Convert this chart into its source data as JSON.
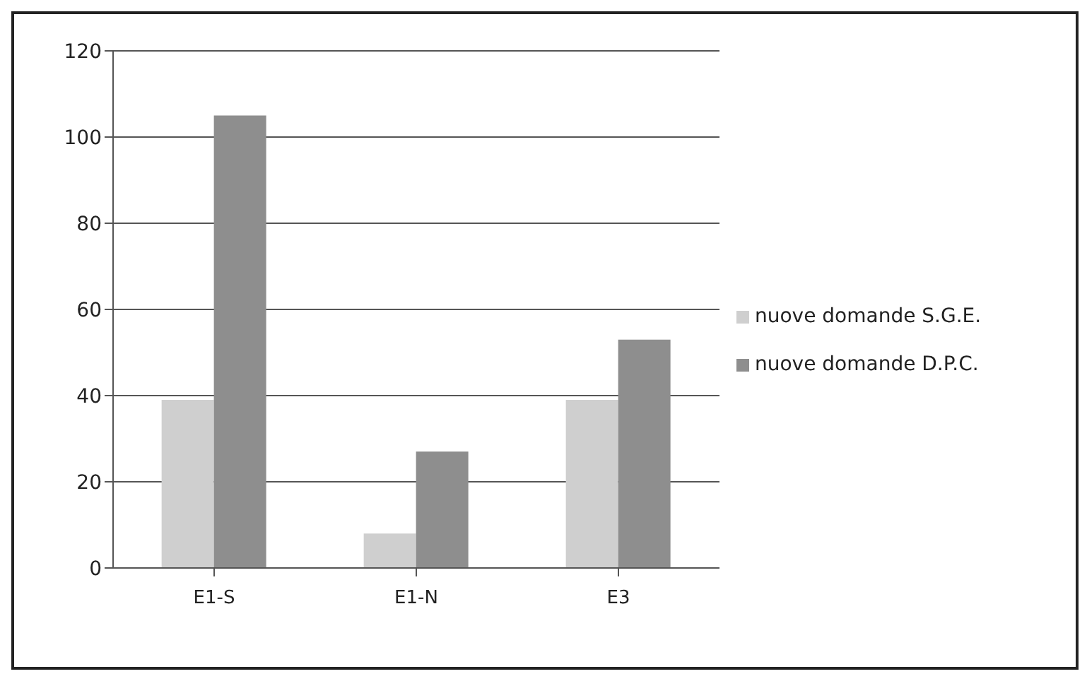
{
  "chart_data": {
    "type": "bar",
    "categories": [
      "E1-S",
      "E1-N",
      "E3"
    ],
    "series": [
      {
        "name": "nuove domande S.G.E.",
        "color": "#cfcfcf",
        "values": [
          39,
          8,
          39
        ]
      },
      {
        "name": "nuove domande D.P.C.",
        "color": "#8e8e8e",
        "values": [
          105,
          27,
          53
        ]
      }
    ],
    "ylim": [
      0,
      120
    ],
    "yticks": [
      0,
      20,
      40,
      60,
      80,
      100,
      120
    ],
    "grid": "y",
    "legend": "right"
  }
}
